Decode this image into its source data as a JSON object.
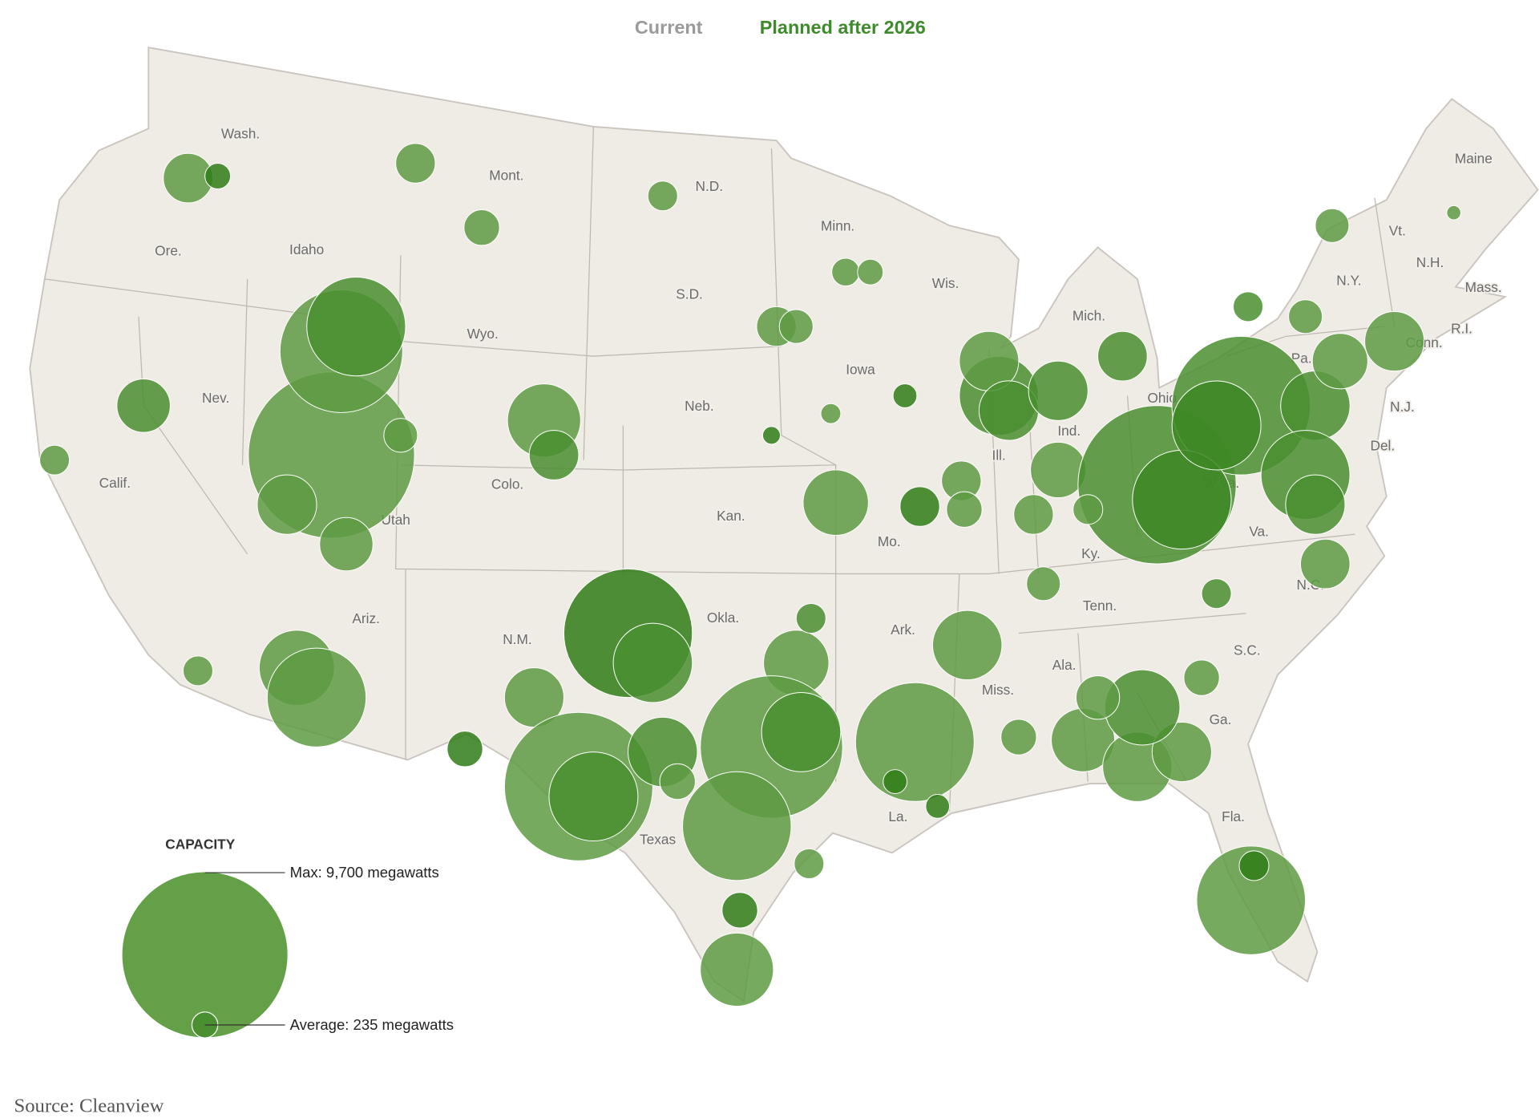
{
  "tabs": [
    "Current",
    "Planned after 2026"
  ],
  "map": {
    "labels": [
      "Wash.",
      "Mont.",
      "N.D.",
      "Minn.",
      "Maine",
      "Vt.",
      "N.H.",
      "Mass.",
      "N.Y.",
      "R.I.",
      "Conn.",
      "Pa.",
      "N.J.",
      "Del.",
      "Ore.",
      "Idaho",
      "Wis.",
      "Mich.",
      "S.D.",
      "Wyo.",
      "Iowa",
      "Nev.",
      "Ohio",
      "Neb.",
      "Ind.",
      "Ill.",
      "Calif.",
      "Colo.",
      "W.Va.",
      "Utah",
      "Kan.",
      "Mo.",
      "Va.",
      "Ky.",
      "Tenn.",
      "N.C.",
      "Ariz.",
      "Okla.",
      "N.M.",
      "Ark.",
      "S.C.",
      "Ala.",
      "Miss.",
      "Ga.",
      "Texas",
      "La.",
      "Fla."
    ],
    "bubbles": [
      {
        "capacity": 9700,
        "color": "#5e9b43"
      },
      {
        "capacity": 5290,
        "color": "#5e9b43"
      },
      {
        "capacity": 3430,
        "color": "#4a8f30"
      },
      {
        "capacity": 1240,
        "color": "#5e9b43"
      },
      {
        "capacity": 1000,
        "color": "#5e9b43"
      },
      {
        "capacity": 400,
        "color": "#5e9b43"
      },
      {
        "capacity": 1000,
        "color": "#4a8f30"
      },
      {
        "capacity": 860,
        "color": "#5e9b43"
      },
      {
        "capacity": 230,
        "color": "#2f7d17"
      },
      {
        "capacity": 550,
        "color": "#5e9b43"
      },
      {
        "capacity": 445,
        "color": "#5e9b43"
      },
      {
        "capacity": 1880,
        "color": "#5e9b43"
      },
      {
        "capacity": 860,
        "color": "#4a8f30"
      },
      {
        "capacity": 310,
        "color": "#5e9b43"
      },
      {
        "capacity": 550,
        "color": "#5e9b43"
      },
      {
        "capacity": 400,
        "color": "#5e9b43"
      },
      {
        "capacity": 270,
        "color": "#5e9b43"
      },
      {
        "capacity": 230,
        "color": "#5e9b43"
      },
      {
        "capacity": 140,
        "color": "#5e9b43"
      },
      {
        "capacity": 110,
        "color": "#2f7d17"
      },
      {
        "capacity": 200,
        "color": "#2f7d17"
      },
      {
        "capacity": 1500,
        "color": "#5e9b43"
      },
      {
        "capacity": 550,
        "color": "#2f7d17"
      },
      {
        "capacity": 550,
        "color": "#5e9b43"
      },
      {
        "capacity": 445,
        "color": "#5e9b43"
      },
      {
        "capacity": 5800,
        "color": "#2f7d17"
      },
      {
        "capacity": 2200,
        "color": "#4a8f30"
      },
      {
        "capacity": 1240,
        "color": "#5e9b43"
      },
      {
        "capacity": 7730,
        "color": "#5e9b43"
      },
      {
        "capacity": 2780,
        "color": "#4a8f30"
      },
      {
        "capacity": 445,
        "color": "#2f7d17"
      },
      {
        "capacity": 1990,
        "color": "#5e9b43"
      },
      {
        "capacity": 3430,
        "color": "#5e9b43"
      },
      {
        "capacity": 310,
        "color": "#5e9b43"
      },
      {
        "capacity": 310,
        "color": "#5e9b43"
      },
      {
        "capacity": 1500,
        "color": "#5e9b43"
      },
      {
        "capacity": 310,
        "color": "#4a8f30"
      },
      {
        "capacity": 7120,
        "color": "#5e9b43"
      },
      {
        "capacity": 2200,
        "color": "#4a8f30"
      },
      {
        "capacity": 4150,
        "color": "#5e9b43"
      },
      {
        "capacity": 1690,
        "color": "#4a8f30"
      },
      {
        "capacity": 445,
        "color": "#5e9b43"
      },
      {
        "capacity": 445,
        "color": "#2f7d17"
      },
      {
        "capacity": 1880,
        "color": "#5e9b43"
      },
      {
        "capacity": 310,
        "color": "#5e9b43"
      },
      {
        "capacity": 4950,
        "color": "#5e9b43"
      },
      {
        "capacity": 1690,
        "color": "#5e9b43"
      },
      {
        "capacity": 200,
        "color": "#2f7d17"
      },
      {
        "capacity": 200,
        "color": "#2f7d17"
      },
      {
        "capacity": 445,
        "color": "#5e9b43"
      },
      {
        "capacity": 1410,
        "color": "#5e9b43"
      },
      {
        "capacity": 1690,
        "color": "#5e9b43"
      },
      {
        "capacity": 1240,
        "color": "#5e9b43"
      },
      {
        "capacity": 1990,
        "color": "#4a8f30"
      },
      {
        "capacity": 665,
        "color": "#5e9b43"
      },
      {
        "capacity": 4150,
        "color": "#5e9b43"
      },
      {
        "capacity": 310,
        "color": "#2f7d17"
      },
      {
        "capacity": 2200,
        "color": "#4a8f30"
      },
      {
        "capacity": 1240,
        "color": "#5e9b43"
      },
      {
        "capacity": 1240,
        "color": "#4a8f30"
      },
      {
        "capacity": 1080,
        "color": "#5e9b43"
      },
      {
        "capacity": 1240,
        "color": "#4a8f30"
      },
      {
        "capacity": 8800,
        "color": "#4a8f30"
      },
      {
        "capacity": 6740,
        "color": "#4a8f30"
      },
      {
        "capacity": 3430,
        "color": "#3d8725"
      },
      {
        "capacity": 2780,
        "color": "#3d8725"
      },
      {
        "capacity": 1690,
        "color": "#4a8f30"
      },
      {
        "capacity": 860,
        "color": "#4a8f30"
      },
      {
        "capacity": 400,
        "color": "#5e9b43"
      },
      {
        "capacity": 1080,
        "color": "#5e9b43"
      },
      {
        "capacity": 1240,
        "color": "#5e9b43"
      },
      {
        "capacity": 2780,
        "color": "#4a8f30"
      },
      {
        "capacity": 1240,
        "color": "#4a8f30"
      },
      {
        "capacity": 860,
        "color": "#5e9b43"
      },
      {
        "capacity": 400,
        "color": "#5e9b43"
      },
      {
        "capacity": 400,
        "color": "#5e9b43"
      },
      {
        "capacity": 310,
        "color": "#4a8f30"
      },
      {
        "capacity": 310,
        "color": "#4a8f30"
      },
      {
        "capacity": 445,
        "color": "#5e9b43"
      },
      {
        "capacity": 70,
        "color": "#5e9b43"
      },
      {
        "capacity": 550,
        "color": "#5e9b43"
      },
      {
        "capacity": 310,
        "color": "#5e9b43"
      }
    ]
  },
  "legend": {
    "title": "CAPACITY",
    "items": [
      {
        "value": 9700,
        "label": "Max: 9,700 megawatts"
      },
      {
        "value": 235,
        "label": "Average: 235 megawatts"
      }
    ]
  },
  "source": "Source: Cleanview"
}
